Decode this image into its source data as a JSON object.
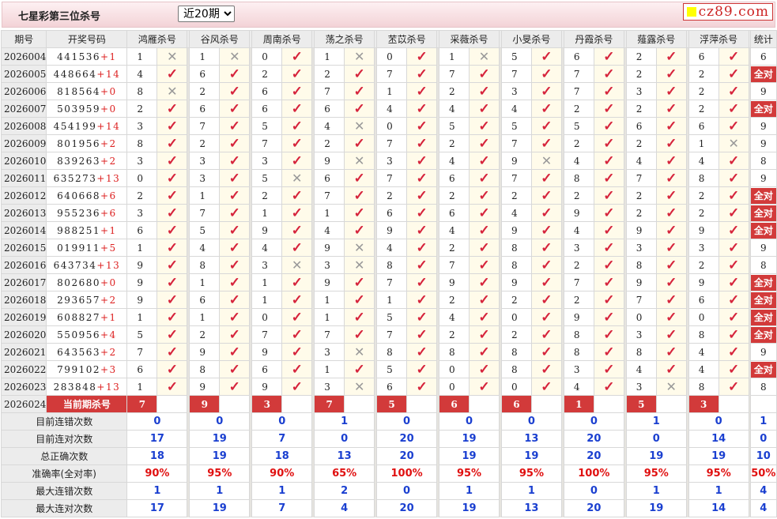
{
  "header": {
    "title": "七星彩第三位杀号",
    "period_select": "近20期",
    "logo": "cz89.com"
  },
  "columns": {
    "issue": "期号",
    "draw": "开奖号码",
    "stat": "统计",
    "experts": [
      "鸿雁杀号",
      "谷风杀号",
      "周南杀号",
      "荡之杀号",
      "苤苡杀号",
      "采薇杀号",
      "小旻杀号",
      "丹霞杀号",
      "薤露杀号",
      "浮萍杀号"
    ]
  },
  "colors": {
    "accent": "#d23a3a",
    "check": "#d6243c",
    "stat_value": "#1a3fd0"
  },
  "all_correct_label": "全对",
  "rows": [
    {
      "issue": "2026004",
      "draw": "441536",
      "plus": "+1",
      "kills": [
        1,
        1,
        0,
        1,
        0,
        1,
        5,
        6,
        2,
        6
      ],
      "stat": "6"
    },
    {
      "issue": "2026005",
      "draw": "448664",
      "plus": "+14",
      "kills": [
        4,
        6,
        2,
        2,
        7,
        7,
        7,
        7,
        2,
        2
      ],
      "stat": "全对"
    },
    {
      "issue": "2026006",
      "draw": "818564",
      "plus": "+0",
      "kills": [
        8,
        2,
        6,
        7,
        1,
        2,
        3,
        7,
        3,
        2
      ],
      "stat": "9"
    },
    {
      "issue": "2026007",
      "draw": "503959",
      "plus": "+0",
      "kills": [
        2,
        6,
        6,
        6,
        4,
        4,
        4,
        2,
        2,
        2
      ],
      "stat": "全对"
    },
    {
      "issue": "2026008",
      "draw": "454199",
      "plus": "+14",
      "kills": [
        3,
        7,
        5,
        4,
        0,
        5,
        5,
        5,
        6,
        6
      ],
      "stat": "9"
    },
    {
      "issue": "2026009",
      "draw": "801956",
      "plus": "+2",
      "kills": [
        8,
        2,
        7,
        2,
        7,
        2,
        7,
        2,
        2,
        1
      ],
      "stat": "9"
    },
    {
      "issue": "2026010",
      "draw": "839263",
      "plus": "+2",
      "kills": [
        3,
        3,
        3,
        9,
        3,
        4,
        9,
        4,
        4,
        4
      ],
      "stat": "8"
    },
    {
      "issue": "2026011",
      "draw": "635273",
      "plus": "+13",
      "kills": [
        0,
        3,
        5,
        6,
        7,
        6,
        7,
        8,
        7,
        8
      ],
      "stat": "9"
    },
    {
      "issue": "2026012",
      "draw": "640668",
      "plus": "+6",
      "kills": [
        2,
        1,
        2,
        7,
        2,
        2,
        2,
        2,
        2,
        2
      ],
      "stat": "全对"
    },
    {
      "issue": "2026013",
      "draw": "955236",
      "plus": "+6",
      "kills": [
        3,
        7,
        1,
        1,
        6,
        6,
        4,
        9,
        2,
        2
      ],
      "stat": "全对"
    },
    {
      "issue": "2026014",
      "draw": "988251",
      "plus": "+1",
      "kills": [
        6,
        5,
        9,
        4,
        9,
        4,
        9,
        4,
        9,
        9
      ],
      "stat": "全对"
    },
    {
      "issue": "2026015",
      "draw": "019911",
      "plus": "+5",
      "kills": [
        1,
        4,
        4,
        9,
        4,
        2,
        8,
        3,
        3,
        3
      ],
      "stat": "9"
    },
    {
      "issue": "2026016",
      "draw": "643734",
      "plus": "+13",
      "kills": [
        9,
        8,
        3,
        3,
        8,
        7,
        8,
        2,
        8,
        2
      ],
      "stat": "8"
    },
    {
      "issue": "2026017",
      "draw": "802680",
      "plus": "+0",
      "kills": [
        9,
        1,
        1,
        9,
        7,
        9,
        9,
        7,
        9,
        9
      ],
      "stat": "全对"
    },
    {
      "issue": "2026018",
      "draw": "293657",
      "plus": "+2",
      "kills": [
        9,
        6,
        1,
        1,
        1,
        2,
        2,
        2,
        7,
        6
      ],
      "stat": "全对"
    },
    {
      "issue": "2026019",
      "draw": "608827",
      "plus": "+1",
      "kills": [
        1,
        1,
        0,
        1,
        5,
        4,
        0,
        9,
        0,
        0
      ],
      "stat": "全对"
    },
    {
      "issue": "2026020",
      "draw": "550956",
      "plus": "+4",
      "kills": [
        5,
        2,
        7,
        7,
        7,
        2,
        2,
        8,
        3,
        8
      ],
      "stat": "全对"
    },
    {
      "issue": "2026021",
      "draw": "643563",
      "plus": "+2",
      "kills": [
        7,
        9,
        9,
        3,
        8,
        8,
        8,
        8,
        8,
        4
      ],
      "stat": "9"
    },
    {
      "issue": "2026022",
      "draw": "799102",
      "plus": "+3",
      "kills": [
        6,
        8,
        6,
        1,
        5,
        0,
        8,
        3,
        4,
        4
      ],
      "stat": "全对"
    },
    {
      "issue": "2026023",
      "draw": "283848",
      "plus": "+13",
      "kills": [
        1,
        9,
        9,
        3,
        6,
        0,
        0,
        4,
        3,
        8
      ],
      "stat": "8"
    }
  ],
  "current": {
    "issue": "2026024",
    "label": "当前期杀号",
    "kills": [
      7,
      9,
      3,
      7,
      5,
      6,
      6,
      1,
      5,
      3
    ]
  },
  "stats": [
    {
      "label": "目前连错次数",
      "values": [
        "0",
        "0",
        "0",
        "1",
        "0",
        "0",
        "0",
        "0",
        "1",
        "0",
        "1"
      ]
    },
    {
      "label": "目前连对次数",
      "values": [
        "17",
        "19",
        "7",
        "0",
        "20",
        "19",
        "13",
        "20",
        "0",
        "14",
        "0"
      ]
    },
    {
      "label": "总正确次数",
      "values": [
        "18",
        "19",
        "18",
        "13",
        "20",
        "19",
        "19",
        "20",
        "19",
        "19",
        "10"
      ]
    },
    {
      "label": "准确率(全对率)",
      "values": [
        "90%",
        "95%",
        "90%",
        "65%",
        "100%",
        "95%",
        "95%",
        "100%",
        "95%",
        "95%",
        "50%"
      ],
      "red": true
    },
    {
      "label": "最大连错次数",
      "values": [
        "1",
        "1",
        "1",
        "2",
        "0",
        "1",
        "1",
        "0",
        "1",
        "1",
        "4"
      ]
    },
    {
      "label": "最大连对次数",
      "values": [
        "17",
        "19",
        "7",
        "4",
        "20",
        "19",
        "13",
        "20",
        "19",
        "14",
        "4"
      ]
    }
  ]
}
